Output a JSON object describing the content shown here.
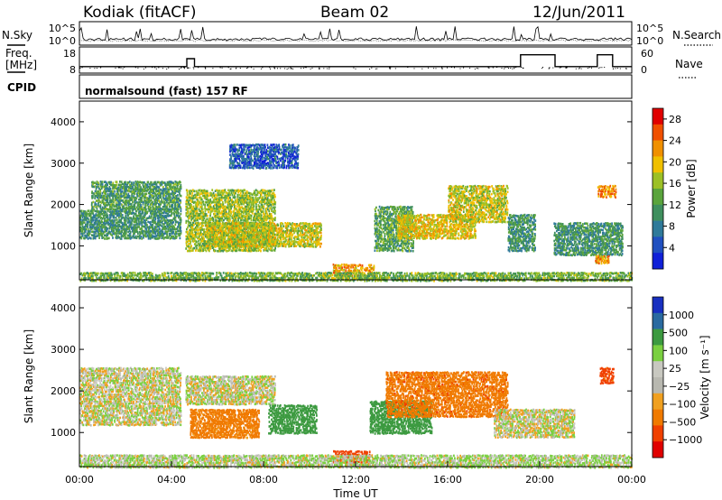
{
  "header": {
    "station": "Kodiak (fitACF)",
    "beam": "Beam 02",
    "date": "12/Jun/2011"
  },
  "top_panels": {
    "nsky_label": "N.Sky",
    "nsearch_label": "N.Search",
    "freq_label_line1": "Freq.",
    "freq_label_line2": "[MHz]",
    "nave_label": "Nave",
    "cpid_label": "CPID",
    "noise_ticks_left": [
      "10^5",
      "10^0"
    ],
    "noise_ticks_right": [
      "10^5",
      "10^0"
    ],
    "freq_ticks": [
      "18",
      "8"
    ],
    "nave_ticks": [
      "60",
      "0"
    ],
    "cpid_text": "normalsound (fast) 157 RF"
  },
  "colors": {
    "power_scale": [
      "#1020d8",
      "#2050c0",
      "#2f7a9a",
      "#3f8f5e",
      "#5aa43c",
      "#9cc026",
      "#f0c000",
      "#f09000",
      "#f05000",
      "#e00000"
    ],
    "velocity_scale": [
      "#e00000",
      "#f04000",
      "#f07a00",
      "#f0a020",
      "#b8b8b0",
      "#c8c8c0",
      "#7ad040",
      "#3c9a40",
      "#2a6aa0",
      "#1830c0"
    ]
  },
  "chart_data": [
    {
      "type": "line",
      "name": "noise",
      "ylim": [
        0,
        100000
      ],
      "yticks": [
        "10^5",
        "10^0"
      ]
    },
    {
      "type": "line",
      "name": "frequency",
      "ylim": [
        8,
        18
      ],
      "x": [
        "00:00",
        "04:40",
        "04:40",
        "05:00",
        "05:00",
        "19:10",
        "19:10",
        "20:40",
        "20:40",
        "22:30",
        "22:30",
        "23:10",
        "23:10",
        "24:00"
      ],
      "series": [
        {
          "values": [
            10.5,
            10.5,
            13.5,
            13.5,
            10.5,
            10.5,
            15.0,
            15.0,
            10.5,
            10.5,
            15.0,
            15.0,
            10.5,
            10.5
          ]
        }
      ]
    },
    {
      "type": "heatmap",
      "name": "power",
      "ylabel": "Slant Range [km]",
      "ylim": [
        180,
        4500
      ],
      "yticks": [
        1000,
        2000,
        3000,
        4000
      ],
      "xlim": [
        "00:00",
        "24:00"
      ],
      "colorbar": {
        "label": "Power [dB]",
        "ticks": [
          4,
          8,
          12,
          16,
          20,
          24,
          28
        ],
        "range": [
          0,
          30
        ]
      },
      "echo_regions": [
        {
          "t": [
            0.0,
            4.4
          ],
          "r": [
            1200,
            1900
          ],
          "level": 10
        },
        {
          "t": [
            0.5,
            4.4
          ],
          "r": [
            1900,
            2600
          ],
          "level": 11
        },
        {
          "t": [
            4.6,
            8.5
          ],
          "r": [
            900,
            2400
          ],
          "level": 16
        },
        {
          "t": [
            5.5,
            10.5
          ],
          "r": [
            1000,
            1600
          ],
          "level": 18
        },
        {
          "t": [
            6.5,
            9.5
          ],
          "r": [
            2900,
            3500
          ],
          "level": 4
        },
        {
          "t": [
            11.0,
            12.8
          ],
          "r": [
            300,
            600
          ],
          "level": 22
        },
        {
          "t": [
            12.8,
            14.5
          ],
          "r": [
            900,
            2000
          ],
          "level": 12
        },
        {
          "t": [
            13.8,
            17.2
          ],
          "r": [
            1200,
            1800
          ],
          "level": 20
        },
        {
          "t": [
            16.0,
            18.6
          ],
          "r": [
            1600,
            2500
          ],
          "level": 18
        },
        {
          "t": [
            18.6,
            19.8
          ],
          "r": [
            900,
            1800
          ],
          "level": 10
        },
        {
          "t": [
            20.6,
            23.6
          ],
          "r": [
            800,
            1600
          ],
          "level": 10
        },
        {
          "t": [
            22.5,
            23.3
          ],
          "r": [
            2200,
            2500
          ],
          "level": 24
        },
        {
          "t": [
            22.4,
            23.0
          ],
          "r": [
            600,
            800
          ],
          "level": 22
        },
        {
          "t": [
            0.0,
            24.0
          ],
          "r": [
            180,
            400
          ],
          "level": 14
        }
      ]
    },
    {
      "type": "heatmap",
      "name": "velocity",
      "ylabel": "Slant Range [km]",
      "xlabel": "Time UT",
      "ylim": [
        180,
        4500
      ],
      "yticks": [
        1000,
        2000,
        3000,
        4000
      ],
      "xlim": [
        "00:00",
        "24:00"
      ],
      "xticks": [
        "00:00",
        "04:00",
        "08:00",
        "12:00",
        "16:00",
        "20:00",
        "00:00"
      ],
      "colorbar": {
        "label": "Velocity [m s⁻¹]",
        "ticks": [
          "1000",
          "500",
          "100",
          "25",
          "−25",
          "−100",
          "−500",
          "−1000"
        ]
      },
      "echo_regions": [
        {
          "t": [
            0.0,
            4.4
          ],
          "r": [
            1200,
            2600
          ],
          "v": 0
        },
        {
          "t": [
            4.6,
            8.5
          ],
          "r": [
            1700,
            2400
          ],
          "v": 0
        },
        {
          "t": [
            4.8,
            7.8
          ],
          "r": [
            900,
            1600
          ],
          "v": -150
        },
        {
          "t": [
            8.2,
            10.3
          ],
          "r": [
            1000,
            1700
          ],
          "v": 300
        },
        {
          "t": [
            11.0,
            12.6
          ],
          "r": [
            300,
            600
          ],
          "v": -400
        },
        {
          "t": [
            12.6,
            15.3
          ],
          "r": [
            1000,
            1800
          ],
          "v": 300
        },
        {
          "t": [
            13.3,
            18.6
          ],
          "r": [
            1400,
            2500
          ],
          "v": -200
        },
        {
          "t": [
            18.0,
            21.5
          ],
          "r": [
            900,
            1600
          ],
          "v": 0
        },
        {
          "t": [
            22.6,
            23.2
          ],
          "r": [
            2200,
            2600
          ],
          "v": -300
        },
        {
          "t": [
            0.0,
            24.0
          ],
          "r": [
            180,
            500
          ],
          "v": 20
        }
      ]
    }
  ]
}
